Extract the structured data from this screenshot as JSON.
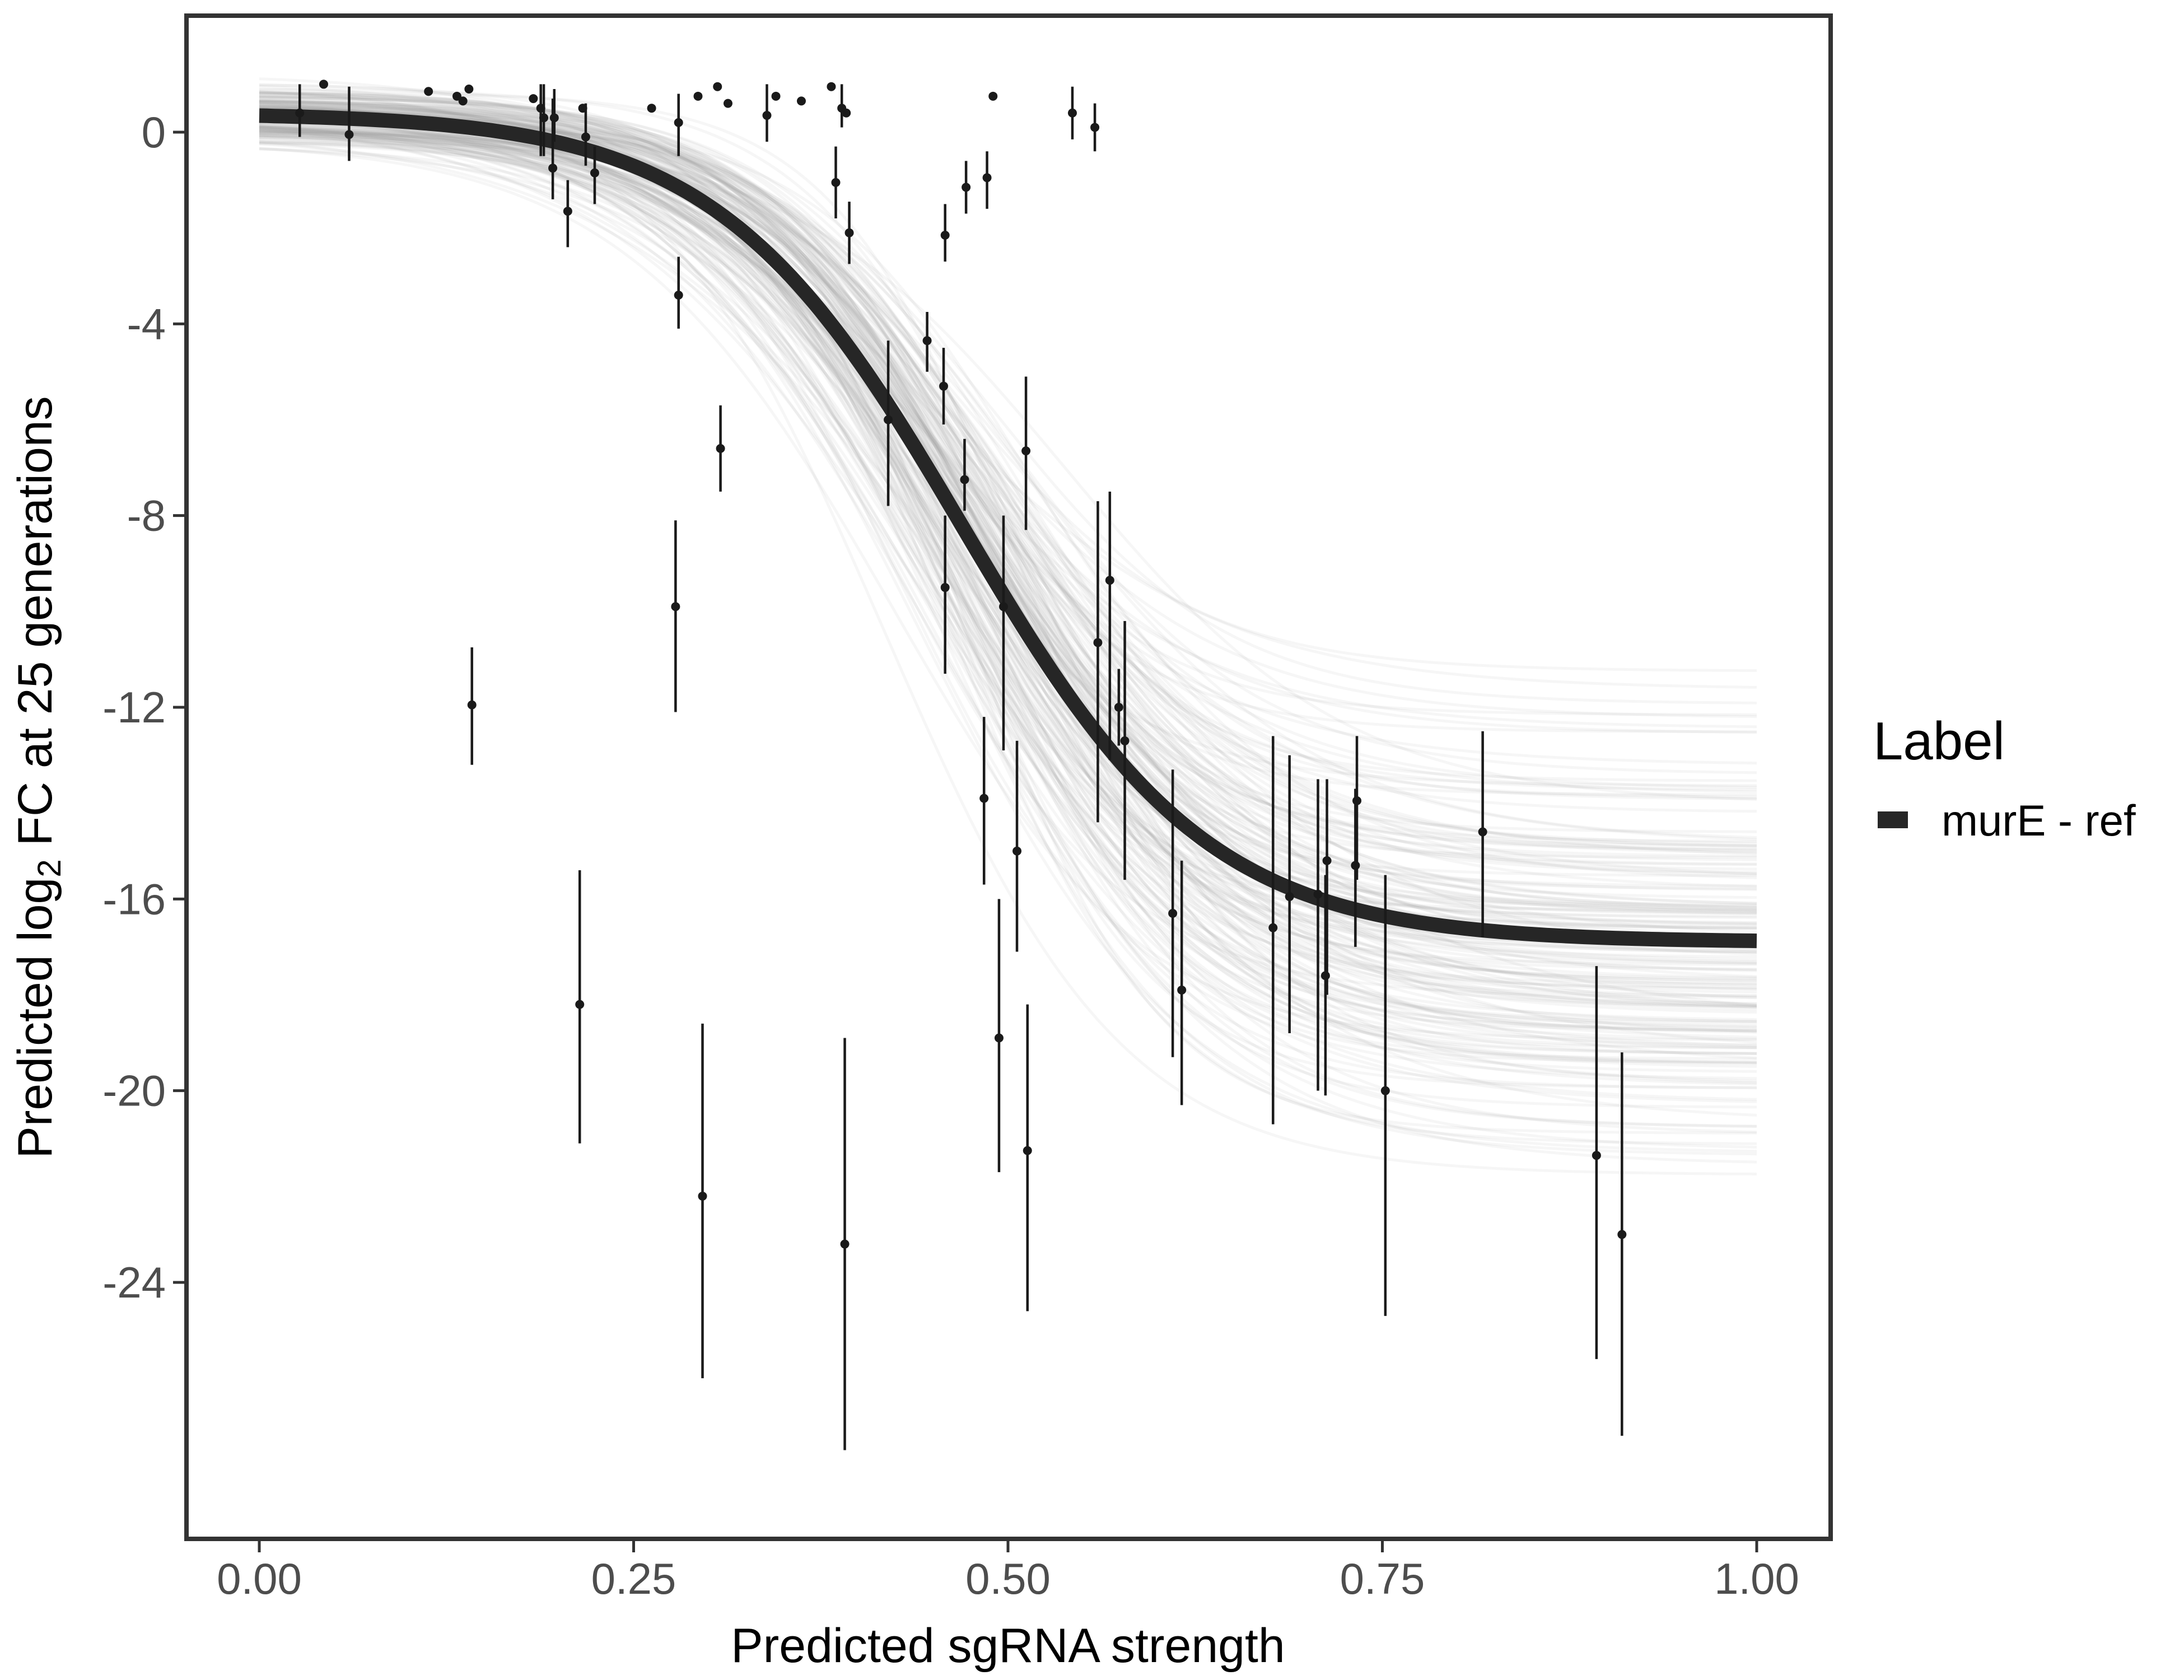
{
  "chart_data": {
    "type": "scatter",
    "title": "",
    "xlabel": "Predicted sgRNA strength",
    "ylabel_prefix": "Predicted  log",
    "ylabel_sub": "2",
    "ylabel_suffix": " FC at 25 generations",
    "xlim": [
      -0.1,
      1.1
    ],
    "ylim": [
      -29.7,
      2.5
    ],
    "x_ticks": [
      0,
      0.25,
      0.5,
      0.75,
      1
    ],
    "x_tick_labels": [
      "0.00",
      "0.25",
      "0.50",
      "0.75",
      "1.00"
    ],
    "y_ticks": [
      0,
      -4,
      -8,
      -12,
      -16,
      -20,
      -24
    ],
    "y_tick_labels": [
      "0",
      "-4",
      "-8",
      "-12",
      "-16",
      "-20",
      "-24"
    ],
    "grid": false,
    "legend": {
      "title": "Label",
      "position": "right",
      "entries": [
        "murE - ref"
      ]
    },
    "fit_curve": {
      "name": "murE - ref",
      "color": "#262626",
      "params": {
        "upper": 0.4,
        "lower": -16.9,
        "midpoint": 0.47,
        "slope": 12.2
      }
    },
    "posterior_draws": {
      "count": 180,
      "color": "#9c9c9c"
    },
    "points": [
      {
        "x": 0.027,
        "y": 0.4,
        "lo": -0.1,
        "hi": 1.0
      },
      {
        "x": 0.043,
        "y": 1.0,
        "lo": 1.0,
        "hi": 1.0
      },
      {
        "x": 0.06,
        "y": -0.05,
        "lo": -0.6,
        "hi": 0.95
      },
      {
        "x": 0.113,
        "y": 0.85,
        "lo": 0.85,
        "hi": 0.85
      },
      {
        "x": 0.132,
        "y": 0.75,
        "lo": 0.75,
        "hi": 0.75
      },
      {
        "x": 0.136,
        "y": 0.65,
        "lo": 0.65,
        "hi": 0.65
      },
      {
        "x": 0.14,
        "y": 0.9,
        "lo": 0.9,
        "hi": 0.9
      },
      {
        "x": 0.142,
        "y": -11.95,
        "lo": -13.2,
        "hi": -10.75
      },
      {
        "x": 0.183,
        "y": 0.7,
        "lo": 0.7,
        "hi": 0.7
      },
      {
        "x": 0.188,
        "y": 0.5,
        "lo": -0.5,
        "hi": 1.0
      },
      {
        "x": 0.19,
        "y": 0.3,
        "lo": -0.5,
        "hi": 1.0
      },
      {
        "x": 0.196,
        "y": -0.75,
        "lo": -1.4,
        "hi": 0.7
      },
      {
        "x": 0.197,
        "y": 0.3,
        "lo": -0.2,
        "hi": 0.9
      },
      {
        "x": 0.206,
        "y": -1.65,
        "lo": -2.4,
        "hi": -1.0
      },
      {
        "x": 0.214,
        "y": -18.2,
        "lo": -21.1,
        "hi": -15.4
      },
      {
        "x": 0.216,
        "y": 0.5,
        "lo": 0.5,
        "hi": 0.5
      },
      {
        "x": 0.218,
        "y": -0.1,
        "lo": -0.7,
        "hi": 0.6
      },
      {
        "x": 0.224,
        "y": -0.85,
        "lo": -1.5,
        "hi": -0.3
      },
      {
        "x": 0.262,
        "y": 0.5,
        "lo": 0.5,
        "hi": 0.5
      },
      {
        "x": 0.278,
        "y": -9.9,
        "lo": -12.1,
        "hi": -8.1
      },
      {
        "x": 0.28,
        "y": -3.4,
        "lo": -4.1,
        "hi": -2.6
      },
      {
        "x": 0.28,
        "y": 0.2,
        "lo": -0.5,
        "hi": 0.8
      },
      {
        "x": 0.293,
        "y": 0.75,
        "lo": 0.75,
        "hi": 0.75
      },
      {
        "x": 0.296,
        "y": -22.2,
        "lo": -26.0,
        "hi": -18.6
      },
      {
        "x": 0.306,
        "y": 0.95,
        "lo": 0.95,
        "hi": 0.95
      },
      {
        "x": 0.308,
        "y": -6.6,
        "lo": -7.5,
        "hi": -5.7
      },
      {
        "x": 0.313,
        "y": 0.6,
        "lo": 0.6,
        "hi": 0.6
      },
      {
        "x": 0.339,
        "y": 0.35,
        "lo": -0.2,
        "hi": 1.0
      },
      {
        "x": 0.345,
        "y": 0.75,
        "lo": 0.75,
        "hi": 0.75
      },
      {
        "x": 0.362,
        "y": 0.65,
        "lo": 0.65,
        "hi": 0.65
      },
      {
        "x": 0.382,
        "y": 0.95,
        "lo": 0.95,
        "hi": 0.95
      },
      {
        "x": 0.385,
        "y": -1.05,
        "lo": -1.8,
        "hi": -0.3
      },
      {
        "x": 0.389,
        "y": 0.5,
        "lo": 0.1,
        "hi": 1.0
      },
      {
        "x": 0.391,
        "y": -23.2,
        "lo": -27.5,
        "hi": -18.9
      },
      {
        "x": 0.392,
        "y": 0.4,
        "lo": 0.4,
        "hi": 0.4
      },
      {
        "x": 0.394,
        "y": -2.1,
        "lo": -2.75,
        "hi": -1.45
      },
      {
        "x": 0.42,
        "y": -6.0,
        "lo": -7.8,
        "hi": -4.35
      },
      {
        "x": 0.446,
        "y": -4.35,
        "lo": -5.0,
        "hi": -3.75
      },
      {
        "x": 0.457,
        "y": -5.3,
        "lo": -6.1,
        "hi": -4.5
      },
      {
        "x": 0.458,
        "y": -9.5,
        "lo": -11.3,
        "hi": -8.0
      },
      {
        "x": 0.458,
        "y": -2.15,
        "lo": -2.7,
        "hi": -1.5
      },
      {
        "x": 0.471,
        "y": -7.25,
        "lo": -7.9,
        "hi": -6.4
      },
      {
        "x": 0.472,
        "y": -1.15,
        "lo": -1.7,
        "hi": -0.6
      },
      {
        "x": 0.484,
        "y": -13.9,
        "lo": -15.7,
        "hi": -12.2
      },
      {
        "x": 0.486,
        "y": -0.95,
        "lo": -1.6,
        "hi": -0.4
      },
      {
        "x": 0.49,
        "y": 0.75,
        "lo": 0.75,
        "hi": 0.75
      },
      {
        "x": 0.494,
        "y": -18.9,
        "lo": -21.7,
        "hi": -16.0
      },
      {
        "x": 0.497,
        "y": -9.9,
        "lo": -12.9,
        "hi": -8.0
      },
      {
        "x": 0.506,
        "y": -15.0,
        "lo": -17.1,
        "hi": -12.7
      },
      {
        "x": 0.512,
        "y": -6.65,
        "lo": -8.3,
        "hi": -5.1
      },
      {
        "x": 0.513,
        "y": -21.25,
        "lo": -24.6,
        "hi": -18.2
      },
      {
        "x": 0.543,
        "y": 0.4,
        "lo": -0.15,
        "hi": 0.95
      },
      {
        "x": 0.558,
        "y": 0.1,
        "lo": -0.4,
        "hi": 0.6
      },
      {
        "x": 0.56,
        "y": -10.65,
        "lo": -14.4,
        "hi": -7.7
      },
      {
        "x": 0.568,
        "y": -9.35,
        "lo": -13.1,
        "hi": -7.5
      },
      {
        "x": 0.574,
        "y": -12.0,
        "lo": -12.8,
        "hi": -11.2
      },
      {
        "x": 0.578,
        "y": -12.7,
        "lo": -15.6,
        "hi": -10.2
      },
      {
        "x": 0.61,
        "y": -16.3,
        "lo": -19.3,
        "hi": -13.3
      },
      {
        "x": 0.616,
        "y": -17.9,
        "lo": -20.3,
        "hi": -15.2
      },
      {
        "x": 0.677,
        "y": -16.6,
        "lo": -20.7,
        "hi": -12.6
      },
      {
        "x": 0.688,
        "y": -15.95,
        "lo": -18.8,
        "hi": -13.0
      },
      {
        "x": 0.707,
        "y": -15.9,
        "lo": -20.0,
        "hi": -13.5
      },
      {
        "x": 0.712,
        "y": -17.6,
        "lo": -20.1,
        "hi": -15.5
      },
      {
        "x": 0.713,
        "y": -15.2,
        "lo": -18.0,
        "hi": -13.5
      },
      {
        "x": 0.732,
        "y": -15.3,
        "lo": -17.0,
        "hi": -13.7
      },
      {
        "x": 0.733,
        "y": -13.95,
        "lo": -15.6,
        "hi": -12.6
      },
      {
        "x": 0.752,
        "y": -20.0,
        "lo": -24.7,
        "hi": -15.5
      },
      {
        "x": 0.817,
        "y": -14.6,
        "lo": -16.8,
        "hi": -12.5
      },
      {
        "x": 0.893,
        "y": -21.35,
        "lo": -25.6,
        "hi": -17.4
      },
      {
        "x": 0.91,
        "y": -23.0,
        "lo": -27.2,
        "hi": -19.2
      }
    ]
  }
}
